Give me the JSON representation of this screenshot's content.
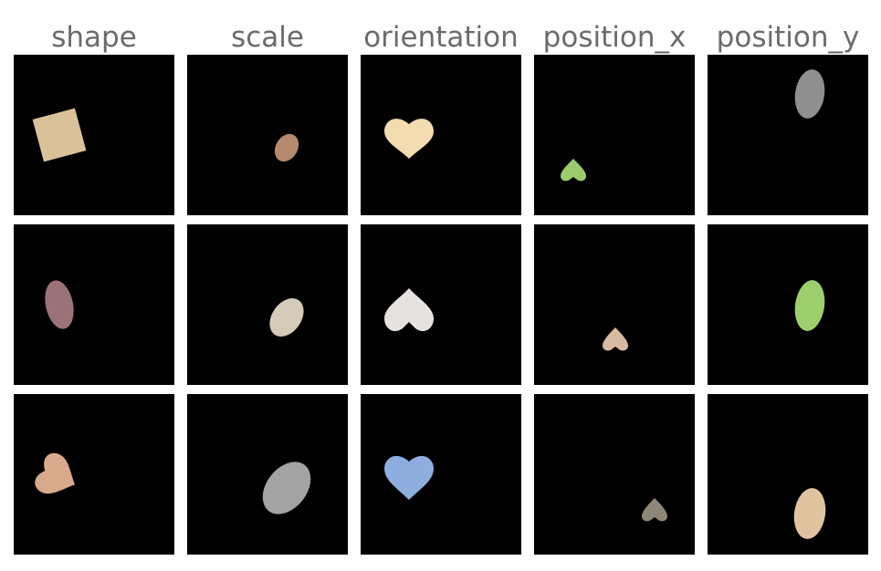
{
  "columns": [
    {
      "label": "shape"
    },
    {
      "label": "scale"
    },
    {
      "label": "orientation"
    },
    {
      "label": "position_x"
    },
    {
      "label": "position_y"
    }
  ],
  "tiles": [
    {
      "row": 0,
      "col": 0,
      "shape": "square",
      "color": "#d9c29a"
    },
    {
      "row": 0,
      "col": 1,
      "shape": "ellipse",
      "color": "#b58a6c"
    },
    {
      "row": 0,
      "col": 2,
      "shape": "heart",
      "color": "#f2dcb0"
    },
    {
      "row": 0,
      "col": 3,
      "shape": "heart",
      "color": "#9ccb6e"
    },
    {
      "row": 0,
      "col": 4,
      "shape": "ellipse",
      "color": "#8f8f8f"
    },
    {
      "row": 1,
      "col": 0,
      "shape": "ellipse",
      "color": "#9a7278"
    },
    {
      "row": 1,
      "col": 1,
      "shape": "ellipse",
      "color": "#d4cbb8"
    },
    {
      "row": 1,
      "col": 2,
      "shape": "heart",
      "color": "#e6e2df"
    },
    {
      "row": 1,
      "col": 3,
      "shape": "heart",
      "color": "#d8b9a2"
    },
    {
      "row": 1,
      "col": 4,
      "shape": "ellipse",
      "color": "#9ecf6f"
    },
    {
      "row": 2,
      "col": 0,
      "shape": "heart",
      "color": "#d9a98c"
    },
    {
      "row": 2,
      "col": 1,
      "shape": "ellipse",
      "color": "#a3a3a3"
    },
    {
      "row": 2,
      "col": 2,
      "shape": "heart",
      "color": "#8faee0"
    },
    {
      "row": 2,
      "col": 3,
      "shape": "heart",
      "color": "#8f8675"
    },
    {
      "row": 2,
      "col": 4,
      "shape": "ellipse",
      "color": "#e0c4a0"
    }
  ]
}
